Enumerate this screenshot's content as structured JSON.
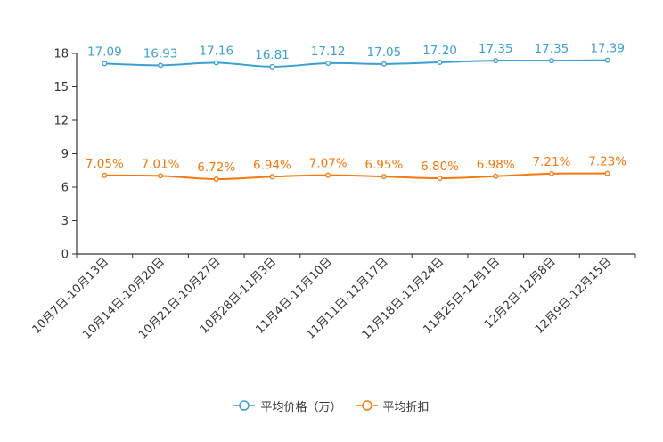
{
  "chart_data": {
    "type": "line",
    "categories": [
      "10月7日-10月13日",
      "10月14日-10月20日",
      "10月21日-10月27日",
      "10月28日-11月3日",
      "11月4日-11月10日",
      "11月11日-11月17日",
      "11月18日-11月24日",
      "11月25日-12月1日",
      "12月2日-12月8日",
      "12月9日-12月15日"
    ],
    "series": [
      {
        "name": "平均价格（万）",
        "color": "#3c9fd6",
        "values": [
          17.09,
          16.93,
          17.16,
          16.81,
          17.12,
          17.05,
          17.2,
          17.35,
          17.35,
          17.39
        ],
        "labels": [
          "17.09",
          "16.93",
          "17.16",
          "16.81",
          "17.12",
          "17.05",
          "17.20",
          "17.35",
          "17.35",
          "17.39"
        ]
      },
      {
        "name": "平均折扣",
        "color": "#f7780d",
        "values": [
          7.05,
          7.01,
          6.72,
          6.94,
          7.07,
          6.95,
          6.8,
          6.98,
          7.21,
          7.23
        ],
        "labels": [
          "7.05%",
          "7.01%",
          "6.72%",
          "6.94%",
          "7.07%",
          "6.95%",
          "6.80%",
          "6.98%",
          "7.21%",
          "7.23%"
        ]
      }
    ],
    "yticks": [
      0,
      3,
      6,
      9,
      12,
      15,
      18
    ],
    "ylim": [
      0,
      18
    ],
    "title": "",
    "xlabel": "",
    "ylabel": "",
    "legend_position": "bottom",
    "grid": false
  }
}
